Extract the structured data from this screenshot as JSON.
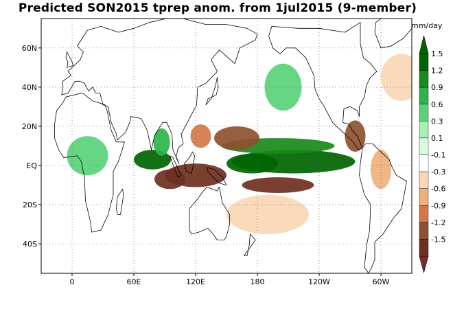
{
  "title": "Predicted SON2015 tprep anom. from 1jul2015 (9-member)",
  "map": {
    "lon_range": [
      -30,
      330
    ],
    "lat_range": [
      -55,
      75
    ],
    "lat_ticks": [
      {
        "value": 60,
        "label": "60N"
      },
      {
        "value": 40,
        "label": "40N"
      },
      {
        "value": 20,
        "label": "20N"
      },
      {
        "value": 0,
        "label": "EQ"
      },
      {
        "value": -20,
        "label": "20S"
      },
      {
        "value": -40,
        "label": "40S"
      }
    ],
    "lon_ticks": [
      {
        "value": 0,
        "label": "0"
      },
      {
        "value": 60,
        "label": "60E"
      },
      {
        "value": 120,
        "label": "120E"
      },
      {
        "value": 180,
        "label": "180"
      },
      {
        "value": 240,
        "label": "120W"
      },
      {
        "value": 300,
        "label": "60W"
      }
    ],
    "colors": {
      "ocean_background": "#ffffff",
      "land_outline": "#000000",
      "grid_dots": "#666666"
    }
  },
  "colorbar": {
    "units": "mm/day",
    "levels": [
      {
        "label": "1.5",
        "color": "#006400"
      },
      {
        "label": "1.2",
        "color": "#1a8a1a"
      },
      {
        "label": "0.9",
        "color": "#2eb44a"
      },
      {
        "label": "0.6",
        "color": "#5ad27a"
      },
      {
        "label": "0.3",
        "color": "#a6f0b4"
      },
      {
        "label": "0.1",
        "color": "#d8fbe0"
      },
      {
        "label": "-0.1",
        "color": "#ffffff"
      },
      {
        "label": "-0.3",
        "color": "#f8d8b6"
      },
      {
        "label": "-0.6",
        "color": "#eeb07c"
      },
      {
        "label": "-0.9",
        "color": "#d2784a"
      },
      {
        "label": "-1.2",
        "color": "#8e5030"
      },
      {
        "label": "-1.5",
        "color": "#6e3020"
      }
    ],
    "extremes": {
      "top": "#006400",
      "bottom": "#7a2a2a"
    }
  },
  "anomaly_fields": [
    {
      "name": "eq-pacific-wet",
      "sign": "wet",
      "level": "1.5",
      "color": "#006400",
      "lon": 215,
      "lat": 2,
      "rlon": 60,
      "rlat": 6
    },
    {
      "name": "eq-pacific-wet-west",
      "sign": "wet",
      "level": "1.5",
      "color": "#006400",
      "lon": 175,
      "lat": 1,
      "rlon": 25,
      "rlat": 5
    },
    {
      "name": "itcz-wet",
      "sign": "wet",
      "level": "1.2",
      "color": "#1a8a1a",
      "lon": 200,
      "lat": 10,
      "rlon": 55,
      "rlat": 4
    },
    {
      "name": "indian-ocean-wet",
      "sign": "wet",
      "level": "1.5",
      "color": "#006400",
      "lon": 78,
      "lat": 3,
      "rlon": 18,
      "rlat": 5
    },
    {
      "name": "bay-of-bengal-wet",
      "sign": "wet",
      "level": "0.9",
      "color": "#2eb44a",
      "lon": 87,
      "lat": 12,
      "rlon": 8,
      "rlat": 7
    },
    {
      "name": "west-africa-wet",
      "sign": "wet",
      "level": "0.6",
      "color": "#5ad27a",
      "lon": 15,
      "lat": 5,
      "rlon": 20,
      "rlat": 10
    },
    {
      "name": "north-pacific-wet",
      "sign": "wet",
      "level": "0.6",
      "color": "#5ad27a",
      "lon": 205,
      "lat": 40,
      "rlon": 18,
      "rlat": 12
    },
    {
      "name": "maritime-dry",
      "sign": "dry",
      "level": "-1.5",
      "color": "#6e3020",
      "lon": 120,
      "lat": -5,
      "rlon": 30,
      "rlat": 6
    },
    {
      "name": "se-indian-dry",
      "sign": "dry",
      "level": "-1.5",
      "color": "#6e3020",
      "lon": 95,
      "lat": -7,
      "rlon": 15,
      "rlat": 5
    },
    {
      "name": "spcz-dry",
      "sign": "dry",
      "level": "-1.5",
      "color": "#6e3020",
      "lon": 200,
      "lat": -10,
      "rlon": 35,
      "rlat": 4
    },
    {
      "name": "west-pacific-dry",
      "sign": "dry",
      "level": "-1.2",
      "color": "#8e5030",
      "lon": 160,
      "lat": 14,
      "rlon": 22,
      "rlat": 6
    },
    {
      "name": "philippines-dry",
      "sign": "dry",
      "level": "-0.9",
      "color": "#d2784a",
      "lon": 125,
      "lat": 15,
      "rlon": 10,
      "rlat": 6
    },
    {
      "name": "central-america-dry",
      "sign": "dry",
      "level": "-1.2",
      "color": "#8e5030",
      "lon": 275,
      "lat": 15,
      "rlon": 10,
      "rlat": 8
    },
    {
      "name": "amazon-dry",
      "sign": "dry",
      "level": "-0.6",
      "color": "#eeb07c",
      "lon": 300,
      "lat": -2,
      "rlon": 10,
      "rlat": 10
    },
    {
      "name": "south-pacific-dry",
      "sign": "dry",
      "level": "-0.3",
      "color": "#f8d8b6",
      "lon": 190,
      "lat": -25,
      "rlon": 40,
      "rlat": 10
    },
    {
      "name": "north-atlantic-dry",
      "sign": "dry",
      "level": "-0.3",
      "color": "#f8d8b6",
      "lon": 320,
      "lat": 45,
      "rlon": 20,
      "rlat": 12
    }
  ]
}
